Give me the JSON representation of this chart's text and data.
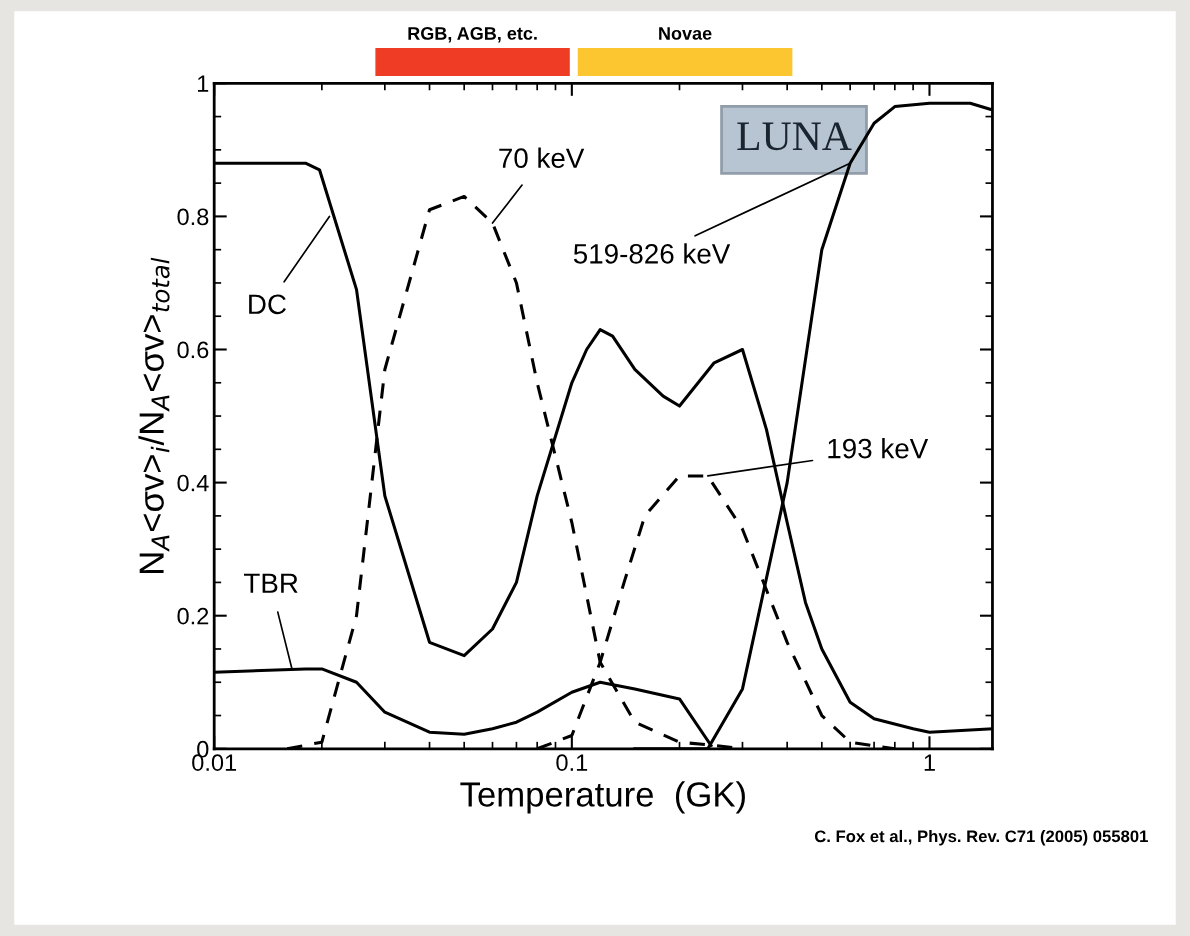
{
  "chart_data": {
    "type": "line",
    "xlabel": "Temperature  (GK)",
    "ylabel": "N$_{A}$<σv>$_{i}$/N$_{A}$<σv>$_{total}$",
    "log": "x",
    "xlim": [
      0.01,
      1.5
    ],
    "xticks": [
      0.01,
      0.1,
      1
    ],
    "ylim": [
      0,
      1
    ],
    "yticks": [
      0,
      0.2,
      0.4,
      0.6,
      0.8,
      1
    ],
    "grid": false,
    "legend": false,
    "marker": "none",
    "series": [
      {
        "color": "#000000",
        "line_style": "solid",
        "x": [
          0.01,
          0.015,
          0.018,
          0.0197,
          0.025,
          0.03,
          0.04,
          0.05,
          0.06,
          0.07,
          0.08,
          0.1,
          0.11,
          0.12,
          0.13,
          0.15,
          0.18,
          0.2,
          0.25,
          0.3,
          0.35,
          0.4,
          0.45,
          0.5,
          0.6,
          0.7,
          0.9,
          1.0,
          1.5
        ],
        "values": [
          0.88,
          0.88,
          0.88,
          0.87,
          0.69,
          0.38,
          0.16,
          0.14,
          0.18,
          0.25,
          0.38,
          0.55,
          0.6,
          0.63,
          0.62,
          0.57,
          0.53,
          0.515,
          0.58,
          0.6,
          0.48,
          0.34,
          0.22,
          0.15,
          0.07,
          0.045,
          0.03,
          0.025,
          0.03
        ]
      },
      {
        "color": "#000000",
        "line_style": "dashed",
        "x": [
          0.016,
          0.02,
          0.025,
          0.03,
          0.04,
          0.05,
          0.06,
          0.07,
          0.08,
          0.1,
          0.12,
          0.15,
          0.2,
          0.25,
          0.3
        ],
        "values": [
          0,
          0.01,
          0.2,
          0.57,
          0.81,
          0.83,
          0.79,
          0.7,
          0.55,
          0.34,
          0.13,
          0.04,
          0.01,
          0.005,
          0
        ]
      },
      {
        "color": "#000000",
        "line_style": "dashed",
        "x": [
          0.08,
          0.1,
          0.12,
          0.14,
          0.16,
          0.2,
          0.24,
          0.3,
          0.4,
          0.5,
          0.6,
          0.8
        ],
        "values": [
          0,
          0.02,
          0.13,
          0.25,
          0.35,
          0.41,
          0.41,
          0.33,
          0.16,
          0.05,
          0.01,
          0
        ]
      },
      {
        "color": "#000000",
        "line_style": "solid",
        "x": [
          0.15,
          0.24,
          0.3,
          0.4,
          0.5,
          0.6,
          0.7,
          0.8,
          1.0,
          1.3,
          1.5
        ],
        "values": [
          0,
          0,
          0.09,
          0.4,
          0.75,
          0.88,
          0.94,
          0.965,
          0.97,
          0.97,
          0.96
        ]
      },
      {
        "color": "#000000",
        "line_style": "solid",
        "x": [
          0.01,
          0.018,
          0.02,
          0.025,
          0.03,
          0.04,
          0.05,
          0.06,
          0.07,
          0.08,
          0.1,
          0.12,
          0.15,
          0.2,
          0.245
        ],
        "values": [
          0.115,
          0.12,
          0.12,
          0.1,
          0.055,
          0.025,
          0.022,
          0.03,
          0.04,
          0.055,
          0.085,
          0.1,
          0.09,
          0.075,
          0.005
        ]
      }
    ],
    "annotations": [
      "RGB, AGB, etc.",
      "Novae",
      {
        "text": "DC",
        "x": 0.021,
        "y": 0.8
      },
      {
        "text": "70 keV",
        "x": 0.06,
        "y": 0.79
      },
      {
        "text": "519-826 keV",
        "x": 0.6,
        "y": 0.88
      },
      {
        "text": "193 keV",
        "x": 0.24,
        "y": 0.41
      },
      {
        "text": "TBR",
        "x": 0.0165,
        "y": 0.12
      },
      "LUNA",
      "C. Fox et al., Phys. Rev. C71 (2005) 055801"
    ]
  }
}
